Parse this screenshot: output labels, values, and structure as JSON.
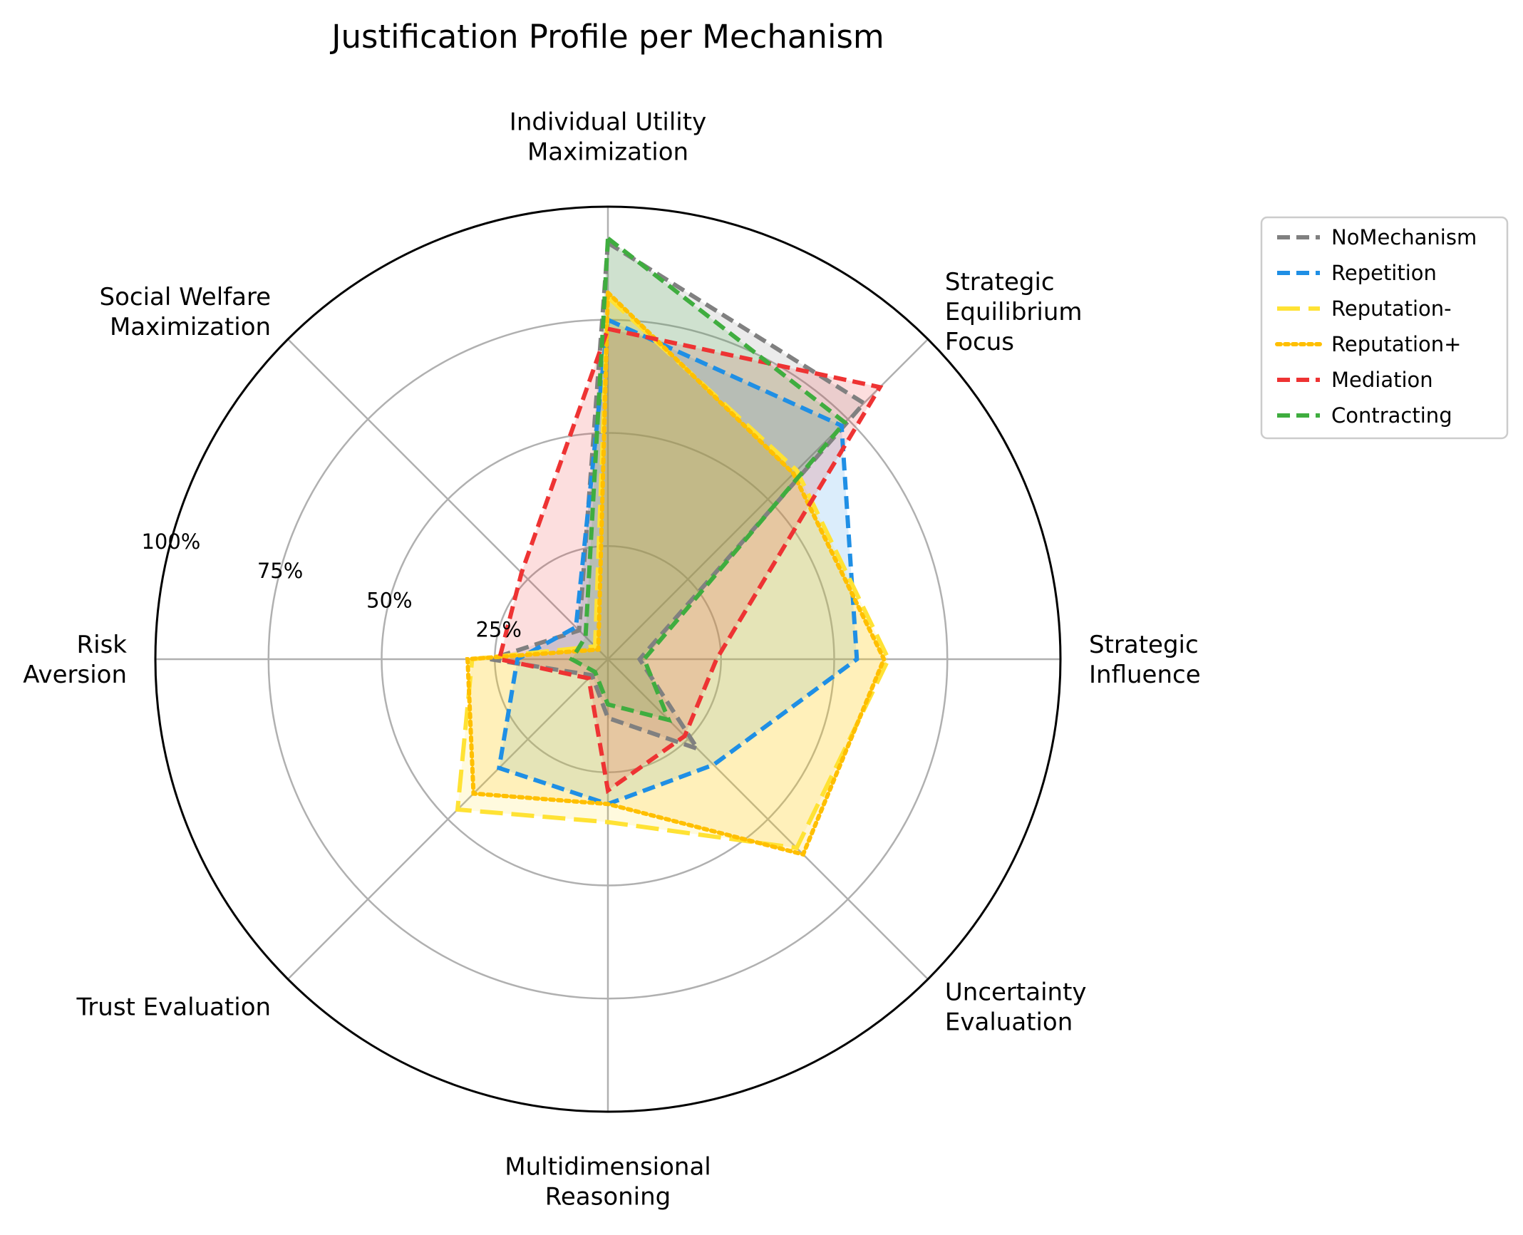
{
  "chart_data": {
    "type": "radar",
    "title": "Justification Profile per Mechanism",
    "axes": [
      "Individual Utility\nMaximization",
      "Strategic\nEquilibrium\nFocus",
      "Strategic\nInfluence",
      "Uncertainty\nEvaluation",
      "Multidimensional\nReasoning",
      "Trust Evaluation",
      "Risk\nAversion",
      "Social Welfare\nMaximization"
    ],
    "rlim": [
      0,
      100
    ],
    "ticks": [
      25,
      50,
      75,
      100
    ],
    "tick_labels": [
      "25%",
      "50%",
      "75%",
      "100%"
    ],
    "grid": true,
    "legend_position": "right",
    "series": [
      {
        "name": "NoMechanism",
        "color": "#808080",
        "dash": "dashed",
        "values": [
          92,
          80,
          7,
          28,
          13,
          5,
          26,
          9
        ]
      },
      {
        "name": "Repetition",
        "color": "#1f8fe5",
        "dash": "dashed",
        "values": [
          75,
          73,
          55,
          33,
          32,
          34,
          20,
          10
        ]
      },
      {
        "name": "Reputation-",
        "color": "#ffe234",
        "dash": "longdash",
        "values": [
          80,
          59,
          62,
          59,
          36,
          47,
          30,
          4
        ]
      },
      {
        "name": "Reputation+",
        "color": "#ffbf00",
        "dash": "dotted",
        "values": [
          81,
          58,
          61,
          61,
          32,
          42,
          31,
          3
        ]
      },
      {
        "name": "Mediation",
        "color": "#ee3333",
        "dash": "dashed",
        "values": [
          73,
          85,
          24,
          24,
          29,
          6,
          24,
          27
        ]
      },
      {
        "name": "Contracting",
        "color": "#3fad3f",
        "dash": "dashed",
        "values": [
          93,
          74,
          8,
          19,
          10,
          4,
          8,
          7
        ]
      }
    ]
  }
}
